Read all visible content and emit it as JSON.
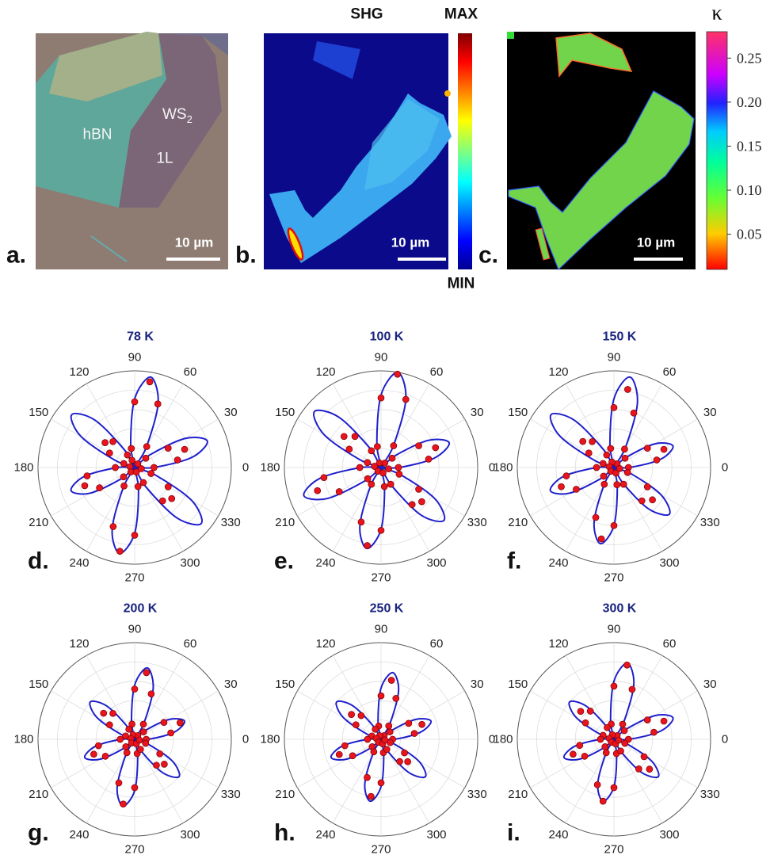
{
  "panel_a": {
    "label": "a.",
    "flake_labels": [
      "hBN",
      "1L"
    ],
    "ws2": {
      "text": "WS",
      "subscript": "2"
    },
    "scale_bar": "10 µm"
  },
  "panel_b": {
    "label": "b.",
    "title": "SHG",
    "colorbar_max": "MAX",
    "colorbar_min": "MIN",
    "scale_bar": "10 µm"
  },
  "panel_c": {
    "label": "c.",
    "scale_bar": "10 µm",
    "colorbar": {
      "label": "κ",
      "clim": [
        0.01,
        0.28
      ],
      "ticks": [
        0.25,
        {
          "value": 0.2,
          "label": "0.20"
        },
        0.15,
        {
          "value": 0.1,
          "label": "0.10"
        },
        0.05
      ]
    }
  },
  "chart_data": [
    {
      "type": "polar",
      "title": "78 K",
      "panel_label": "d.",
      "rlim": [
        0,
        1
      ],
      "point_color": "#e8141e",
      "fit_color": "#1f1fcc",
      "thetaticks": [
        0,
        30,
        60,
        90,
        120,
        150,
        180,
        210,
        240,
        270,
        300,
        330
      ],
      "theta": [
        0,
        10,
        20,
        30,
        40,
        50,
        60,
        70,
        80,
        90,
        100,
        110,
        120,
        130,
        140,
        150,
        160,
        170,
        180,
        190,
        200,
        210,
        220,
        230,
        240,
        250,
        260,
        270,
        280,
        290,
        300,
        310,
        320,
        330,
        340,
        350
      ],
      "points": [
        0.2,
        0.45,
        0.55,
        0.4,
        0.15,
        0.05,
        0.25,
        0.7,
        0.9,
        0.68,
        0.2,
        0.08,
        0.15,
        0.35,
        0.4,
        0.3,
        0.12,
        0.05,
        0.2,
        0.5,
        0.55,
        0.42,
        0.15,
        0.06,
        0.22,
        0.65,
        0.88,
        0.7,
        0.2,
        0.05,
        0.18,
        0.45,
        0.5,
        0.4,
        0.18,
        0.07
      ],
      "fit": [
        0.2,
        0.6,
        0.8,
        0.6,
        0.2,
        0,
        0.24,
        0.71,
        0.95,
        0.71,
        0.24,
        0,
        0.21,
        0.64,
        0.85,
        0.64,
        0.21,
        0,
        0.18,
        0.53,
        0.7,
        0.53,
        0.18,
        0,
        0.23,
        0.68,
        0.9,
        0.68,
        0.23,
        0,
        0.23,
        0.68,
        0.9,
        0.68,
        0.23,
        0
      ]
    },
    {
      "type": "polar",
      "title": "100 K",
      "panel_label": "e.",
      "rlim": [
        0,
        1
      ],
      "point_color": "#e8141e",
      "fit_color": "#1f1fcc",
      "thetaticks": [
        0,
        30,
        60,
        90,
        120,
        150,
        180,
        210,
        240,
        270,
        300,
        330
      ],
      "theta": [
        0,
        10,
        20,
        30,
        40,
        50,
        60,
        70,
        80,
        90,
        100,
        110,
        120,
        130,
        140,
        150,
        160,
        170,
        180,
        190,
        200,
        210,
        220,
        230,
        240,
        250,
        260,
        270,
        280,
        290,
        300,
        310,
        320,
        330,
        340,
        350
      ],
      "points": [
        0.18,
        0.5,
        0.6,
        0.45,
        0.15,
        0.06,
        0.26,
        0.75,
        0.98,
        0.72,
        0.22,
        0.05,
        0.2,
        0.42,
        0.5,
        0.38,
        0.15,
        0.07,
        0.22,
        0.6,
        0.7,
        0.5,
        0.18,
        0.05,
        0.2,
        0.6,
        0.82,
        0.65,
        0.2,
        0.06,
        0.2,
        0.5,
        0.55,
        0.45,
        0.2,
        0.08
      ],
      "fit": [
        0.19,
        0.56,
        0.75,
        0.56,
        0.19,
        0,
        0.25,
        0.75,
        1,
        0.75,
        0.25,
        0,
        0.23,
        0.68,
        0.9,
        0.68,
        0.23,
        0,
        0.21,
        0.64,
        0.85,
        0.64,
        0.21,
        0,
        0.21,
        0.64,
        0.85,
        0.64,
        0.21,
        0,
        0.21,
        0.64,
        0.85,
        0.64,
        0.21,
        0
      ]
    },
    {
      "type": "polar",
      "title": "150 K",
      "panel_label": "f.",
      "rlim": [
        0,
        1
      ],
      "point_color": "#e8141e",
      "fit_color": "#1f1fcc",
      "thetaticks": [
        0,
        30,
        60,
        90,
        120,
        150,
        180,
        210,
        240,
        270,
        300,
        330
      ],
      "theta": [
        0,
        10,
        20,
        30,
        40,
        50,
        60,
        70,
        80,
        90,
        100,
        110,
        120,
        130,
        140,
        150,
        160,
        170,
        180,
        190,
        200,
        210,
        220,
        230,
        240,
        250,
        260,
        270,
        280,
        290,
        300,
        310,
        320,
        330,
        340,
        350
      ],
      "points": [
        0.15,
        0.45,
        0.55,
        0.4,
        0.15,
        0.05,
        0.22,
        0.6,
        0.82,
        0.62,
        0.2,
        0.06,
        0.15,
        0.35,
        0.42,
        0.3,
        0.12,
        0.05,
        0.18,
        0.5,
        0.58,
        0.45,
        0.14,
        0.05,
        0.2,
        0.55,
        0.75,
        0.6,
        0.18,
        0.06,
        0.2,
        0.45,
        0.52,
        0.4,
        0.15,
        0.06
      ],
      "fit": [
        0.16,
        0.49,
        0.65,
        0.49,
        0.16,
        0,
        0.24,
        0.71,
        0.95,
        0.71,
        0.24,
        0,
        0.21,
        0.64,
        0.85,
        0.64,
        0.21,
        0,
        0.18,
        0.53,
        0.7,
        0.53,
        0.18,
        0,
        0.2,
        0.6,
        0.8,
        0.6,
        0.2,
        0,
        0.19,
        0.56,
        0.75,
        0.56,
        0.19,
        0
      ]
    },
    {
      "type": "polar",
      "title": "200 K",
      "panel_label": "g.",
      "rlim": [
        0,
        1
      ],
      "point_color": "#e8141e",
      "fit_color": "#1f1fcc",
      "thetaticks": [
        0,
        30,
        60,
        90,
        120,
        150,
        180,
        210,
        240,
        270,
        300,
        330
      ],
      "theta": [
        0,
        10,
        20,
        30,
        40,
        50,
        60,
        70,
        80,
        90,
        100,
        110,
        120,
        130,
        140,
        150,
        160,
        170,
        180,
        190,
        200,
        210,
        220,
        230,
        240,
        250,
        260,
        270,
        280,
        290,
        300,
        310,
        320,
        330,
        340,
        350
      ],
      "points": [
        0.12,
        0.38,
        0.5,
        0.35,
        0.12,
        0.05,
        0.18,
        0.5,
        0.7,
        0.52,
        0.16,
        0.05,
        0.12,
        0.35,
        0.42,
        0.3,
        0.1,
        0.04,
        0.15,
        0.38,
        0.45,
        0.35,
        0.12,
        0.05,
        0.16,
        0.48,
        0.68,
        0.5,
        0.15,
        0.05,
        0.12,
        0.35,
        0.4,
        0.3,
        0.12,
        0.05
      ],
      "fit": [
        0.14,
        0.41,
        0.55,
        0.41,
        0.14,
        0,
        0.19,
        0.56,
        0.75,
        0.56,
        0.19,
        0,
        0.15,
        0.45,
        0.6,
        0.45,
        0.15,
        0,
        0.14,
        0.41,
        0.55,
        0.41,
        0.14,
        0,
        0.18,
        0.53,
        0.7,
        0.53,
        0.18,
        0,
        0.15,
        0.45,
        0.6,
        0.45,
        0.15,
        0
      ]
    },
    {
      "type": "polar",
      "title": "250 K",
      "panel_label": "h.",
      "rlim": [
        0,
        1
      ],
      "point_color": "#e8141e",
      "fit_color": "#1f1fcc",
      "thetaticks": [
        0,
        30,
        60,
        90,
        120,
        150,
        180,
        210,
        240,
        270,
        300,
        330
      ],
      "theta": [
        0,
        10,
        20,
        30,
        40,
        50,
        60,
        70,
        80,
        90,
        100,
        110,
        120,
        130,
        140,
        150,
        160,
        170,
        180,
        190,
        200,
        210,
        220,
        230,
        240,
        250,
        260,
        270,
        280,
        290,
        300,
        310,
        320,
        330,
        340,
        350
      ],
      "points": [
        0.12,
        0.35,
        0.45,
        0.33,
        0.12,
        0.05,
        0.16,
        0.45,
        0.62,
        0.45,
        0.14,
        0.04,
        0.12,
        0.32,
        0.4,
        0.3,
        0.1,
        0.05,
        0.14,
        0.38,
        0.46,
        0.34,
        0.12,
        0.04,
        0.15,
        0.42,
        0.6,
        0.45,
        0.14,
        0.05,
        0.12,
        0.3,
        0.36,
        0.28,
        0.1,
        0.04
      ],
      "fit": [
        0.14,
        0.41,
        0.55,
        0.41,
        0.14,
        0,
        0.18,
        0.53,
        0.7,
        0.53,
        0.18,
        0,
        0.15,
        0.45,
        0.6,
        0.45,
        0.15,
        0,
        0.14,
        0.41,
        0.55,
        0.41,
        0.14,
        0,
        0.16,
        0.49,
        0.65,
        0.49,
        0.16,
        0,
        0.15,
        0.45,
        0.6,
        0.45,
        0.15,
        0
      ]
    },
    {
      "type": "polar",
      "title": "300 K",
      "panel_label": "i.",
      "rlim": [
        0,
        1
      ],
      "point_color": "#e8141e",
      "fit_color": "#1f1fcc",
      "thetaticks": [
        0,
        30,
        60,
        90,
        120,
        150,
        180,
        210,
        240,
        270,
        300,
        330
      ],
      "theta": [
        0,
        10,
        20,
        30,
        40,
        50,
        60,
        70,
        80,
        90,
        100,
        110,
        120,
        130,
        140,
        150,
        160,
        170,
        180,
        190,
        200,
        210,
        220,
        230,
        240,
        250,
        260,
        270,
        280,
        290,
        300,
        310,
        320,
        330,
        340,
        350
      ],
      "points": [
        0.15,
        0.42,
        0.55,
        0.4,
        0.14,
        0.05,
        0.18,
        0.55,
        0.78,
        0.55,
        0.16,
        0.05,
        0.14,
        0.38,
        0.45,
        0.34,
        0.12,
        0.05,
        0.14,
        0.36,
        0.45,
        0.35,
        0.12,
        0.04,
        0.16,
        0.5,
        0.65,
        0.5,
        0.15,
        0.05,
        0.14,
        0.4,
        0.48,
        0.36,
        0.12,
        0.05
      ],
      "fit": [
        0.16,
        0.49,
        0.65,
        0.49,
        0.16,
        0,
        0.2,
        0.6,
        0.8,
        0.6,
        0.2,
        0,
        0.15,
        0.45,
        0.6,
        0.45,
        0.15,
        0,
        0.14,
        0.41,
        0.55,
        0.41,
        0.14,
        0,
        0.16,
        0.49,
        0.65,
        0.49,
        0.16,
        0,
        0.15,
        0.45,
        0.6,
        0.45,
        0.15,
        0
      ]
    }
  ]
}
